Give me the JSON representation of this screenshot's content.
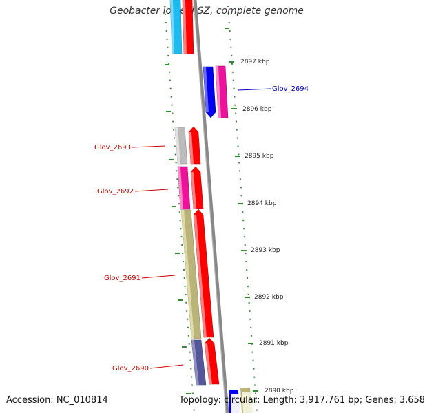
{
  "title": "Geobacter lovleyi SZ, complete genome",
  "footer": {
    "accession": "Accession: NC_010814",
    "topology": "Topology: circular; Length: 3,917,761 bp; Genes: 3,658"
  },
  "scale_ticks": [
    "2897 kbp",
    "2896 kbp",
    "2895 kbp",
    "2894 kbp",
    "2893 kbp",
    "2892 kbp",
    "2891 kbp",
    "2890 kbp"
  ],
  "gene_labels": [
    "Glov_2694",
    "Glov_2693",
    "Glov_2692",
    "Glov_2691",
    "Glov_2690"
  ],
  "colors": {
    "label_red": "#cc0000",
    "label_blue": "#0000cc",
    "backbone": "#888888",
    "tick_green": "#2e8b2e",
    "cyan": "#1ebbee",
    "red": "#ff0000",
    "blue": "#0000ee",
    "magenta": "#ee1199",
    "grey": "#bbbbbb",
    "olive": "#bbb47a",
    "navy": "#555599",
    "cream": "#f2f0d8"
  }
}
